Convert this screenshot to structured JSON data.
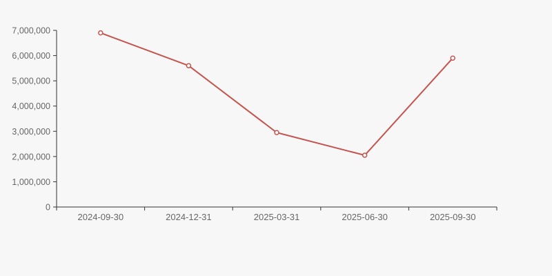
{
  "page": {
    "background_color": "#f7f7f7"
  },
  "chart_data": {
    "type": "line",
    "categories": [
      "2024-09-30",
      "2024-12-31",
      "2025-03-31",
      "2025-06-30",
      "2025-09-30"
    ],
    "values": [
      6900000,
      5600000,
      2950000,
      2050000,
      5900000
    ],
    "title": "",
    "xlabel": "",
    "ylabel": "",
    "ylim": [
      0,
      7000000
    ],
    "y_tick_step": 1000000,
    "y_tick_labels": [
      "0",
      "1,000,000",
      "2,000,000",
      "3,000,000",
      "4,000,000",
      "5,000,000",
      "6,000,000",
      "7,000,000"
    ],
    "grid": false,
    "legend": false,
    "line_color": "#c5534e",
    "marker_style": "hollow-circle",
    "marker_fill": "#ffffff",
    "axis_color": "#333333",
    "label_color": "#666666"
  }
}
